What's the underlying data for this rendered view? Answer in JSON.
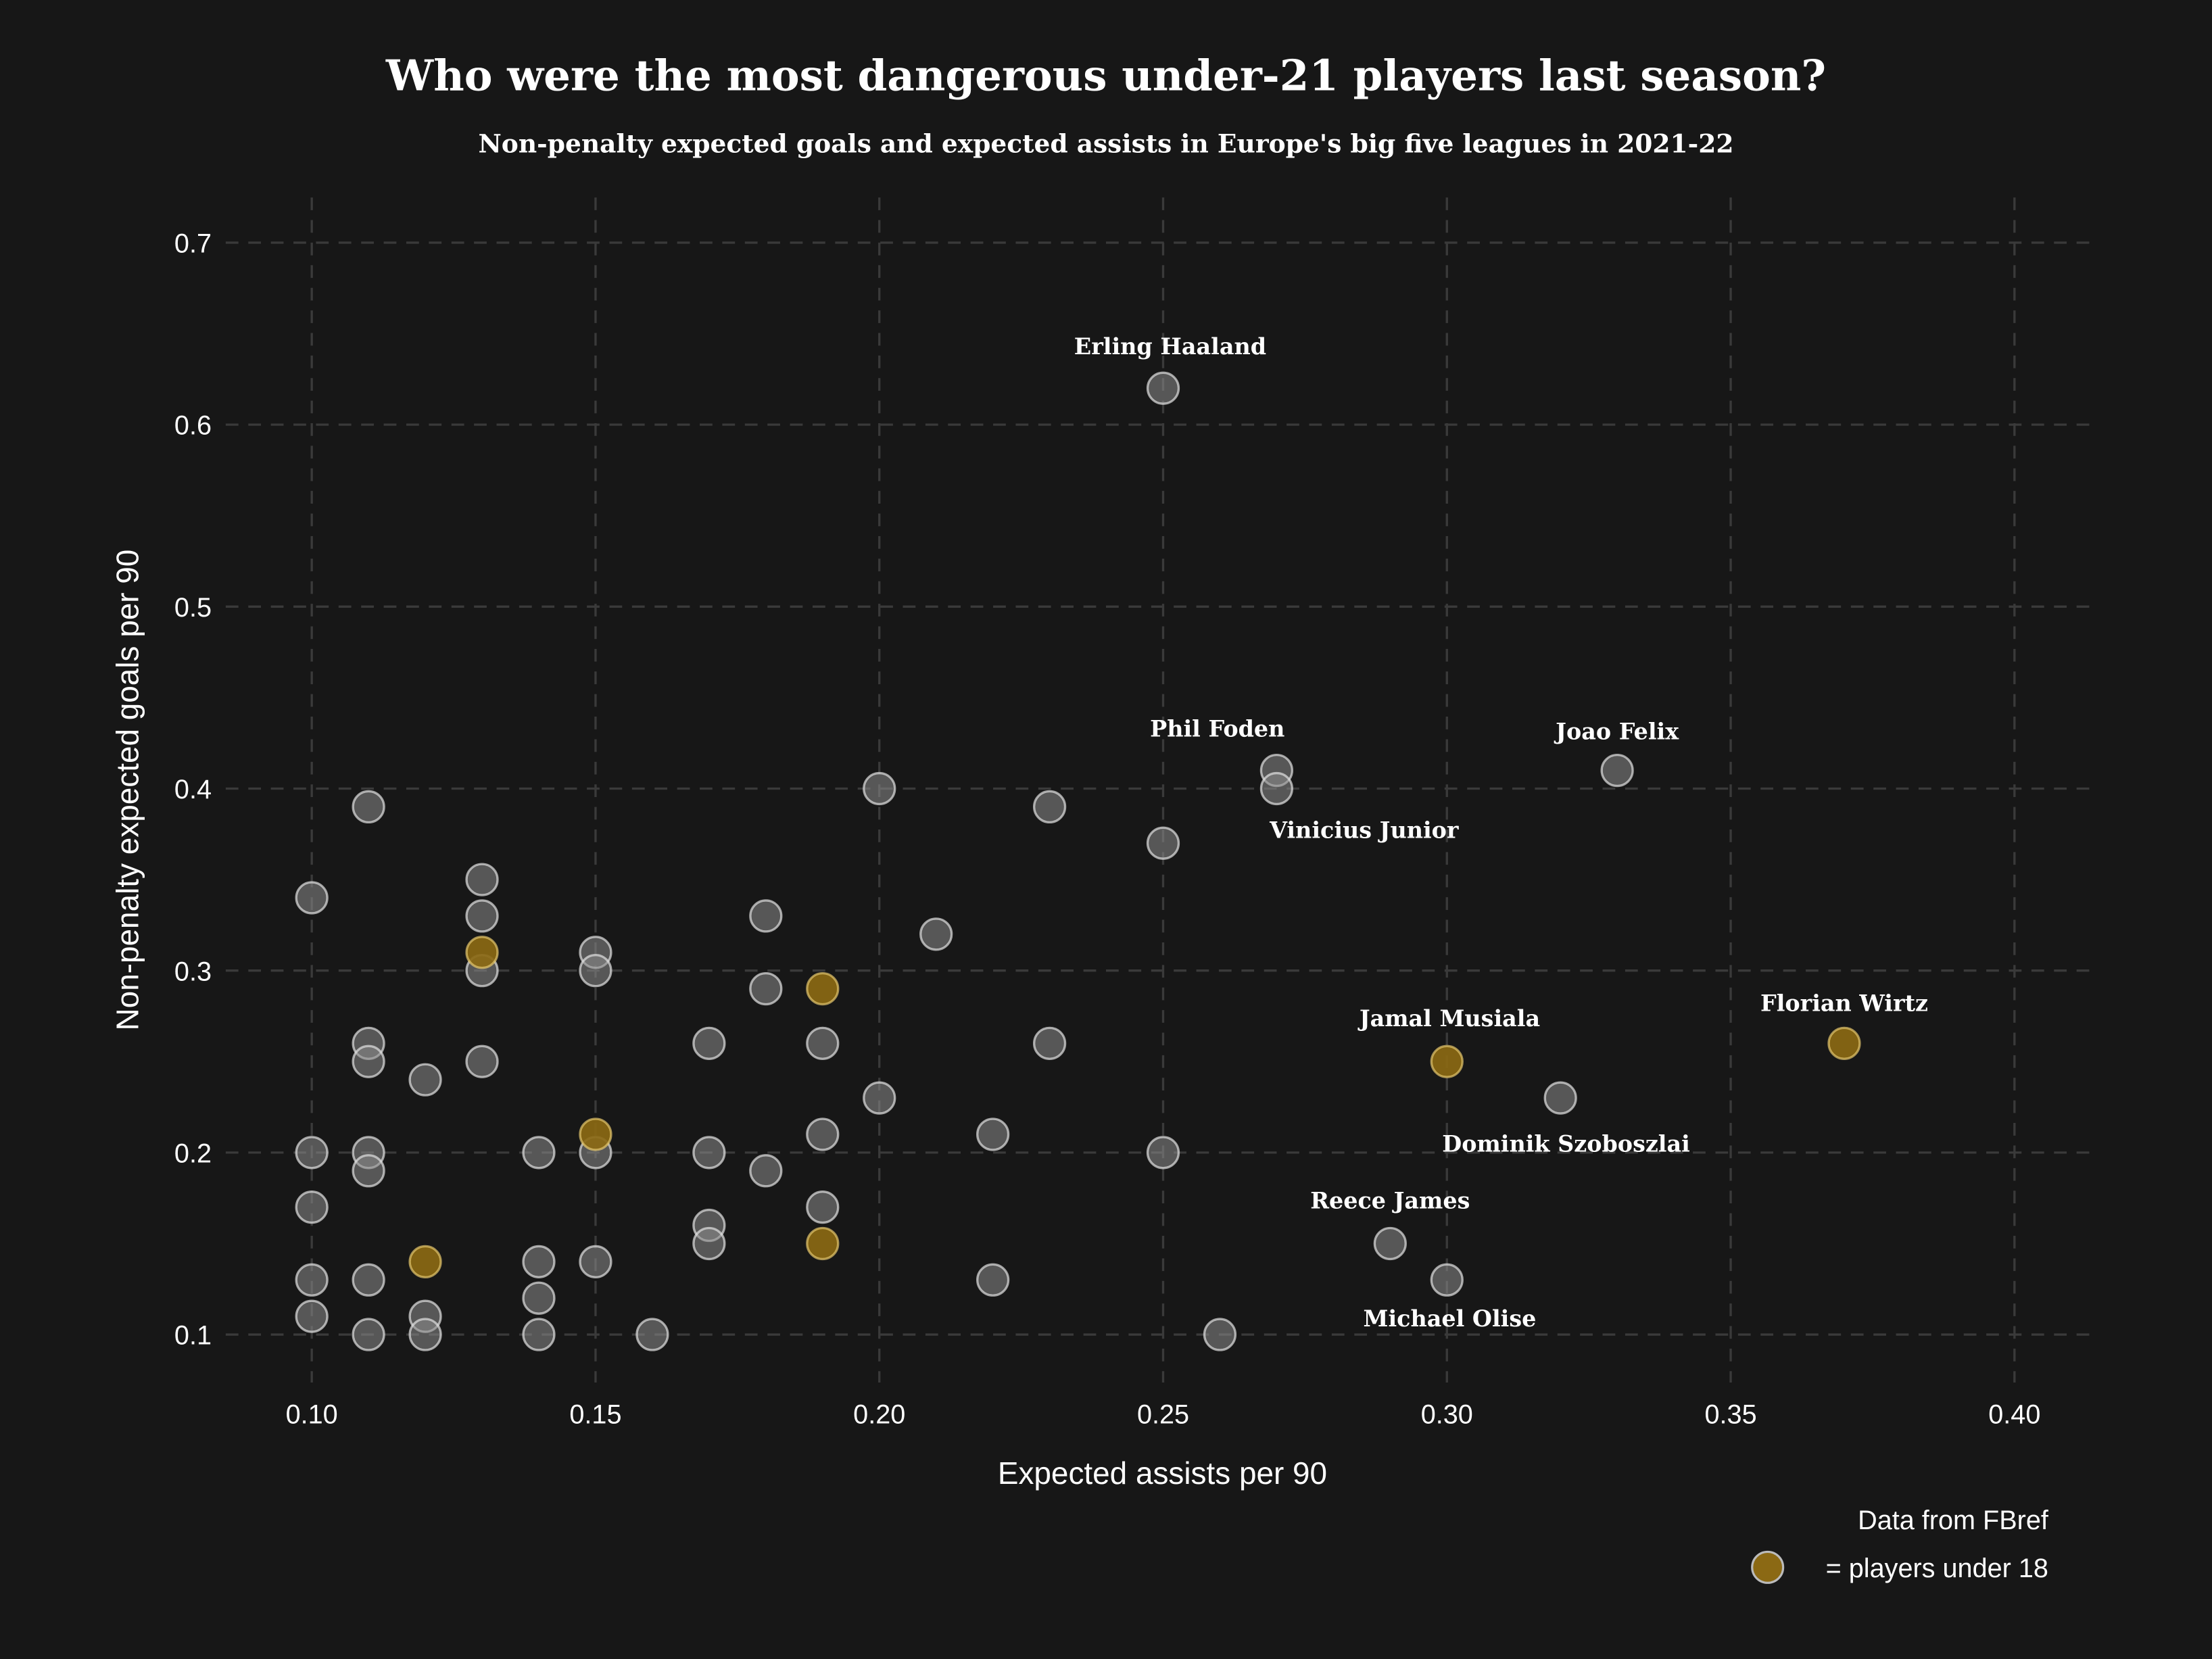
{
  "chart_data": {
    "type": "scatter",
    "title": "Who were the most dangerous under-21 players last season?",
    "subtitle": "Non-penalty expected goals and expected assists in Europe's big five leagues in 2021-22",
    "xlabel": "Expected assists per 90",
    "ylabel": "Non-penalty expected goals per 90",
    "xlim": [
      0.085,
      0.415
    ],
    "ylim": [
      0.075,
      0.72
    ],
    "xticks": [
      "0.10",
      "0.15",
      "0.20",
      "0.25",
      "0.30",
      "0.35",
      "0.40"
    ],
    "yticks": [
      "0.1",
      "0.2",
      "0.3",
      "0.4",
      "0.5",
      "0.6",
      "0.7"
    ],
    "grid": true,
    "colors": {
      "background": "#171717",
      "other": "#5a5a5a",
      "under18": "#8b6914",
      "grid": "#3a3a3a"
    },
    "source": "Data from FBref",
    "legend": {
      "label": "= players under 18",
      "placement": "bottom-right"
    },
    "points": [
      {
        "x": 0.25,
        "y": 0.62,
        "under18": false,
        "label": "Erling Haaland"
      },
      {
        "x": 0.27,
        "y": 0.41,
        "under18": false,
        "label": "Phil Foden"
      },
      {
        "x": 0.27,
        "y": 0.4,
        "under18": false,
        "label": "Vinicius Junior"
      },
      {
        "x": 0.33,
        "y": 0.41,
        "under18": false,
        "label": "Joao Felix"
      },
      {
        "x": 0.32,
        "y": 0.23,
        "under18": false,
        "label": "Dominik Szoboszlai"
      },
      {
        "x": 0.29,
        "y": 0.15,
        "under18": false,
        "label": "Reece James"
      },
      {
        "x": 0.3,
        "y": 0.13,
        "under18": false,
        "label": "Michael Olise"
      },
      {
        "x": 0.3,
        "y": 0.25,
        "under18": true,
        "label": "Jamal Musiala"
      },
      {
        "x": 0.37,
        "y": 0.26,
        "under18": true,
        "label": "Florian Wirtz"
      },
      {
        "x": 0.25,
        "y": 0.37,
        "under18": false
      },
      {
        "x": 0.23,
        "y": 0.39,
        "under18": false
      },
      {
        "x": 0.2,
        "y": 0.4,
        "under18": false
      },
      {
        "x": 0.11,
        "y": 0.39,
        "under18": false
      },
      {
        "x": 0.1,
        "y": 0.34,
        "under18": false
      },
      {
        "x": 0.13,
        "y": 0.35,
        "under18": false
      },
      {
        "x": 0.13,
        "y": 0.33,
        "under18": false
      },
      {
        "x": 0.13,
        "y": 0.3,
        "under18": false
      },
      {
        "x": 0.18,
        "y": 0.33,
        "under18": false
      },
      {
        "x": 0.21,
        "y": 0.32,
        "under18": false
      },
      {
        "x": 0.15,
        "y": 0.31,
        "under18": false
      },
      {
        "x": 0.15,
        "y": 0.3,
        "under18": false
      },
      {
        "x": 0.18,
        "y": 0.29,
        "under18": false
      },
      {
        "x": 0.11,
        "y": 0.26,
        "under18": false
      },
      {
        "x": 0.11,
        "y": 0.25,
        "under18": false
      },
      {
        "x": 0.12,
        "y": 0.24,
        "under18": false
      },
      {
        "x": 0.13,
        "y": 0.25,
        "under18": false
      },
      {
        "x": 0.17,
        "y": 0.26,
        "under18": false
      },
      {
        "x": 0.19,
        "y": 0.26,
        "under18": false
      },
      {
        "x": 0.23,
        "y": 0.26,
        "under18": false
      },
      {
        "x": 0.2,
        "y": 0.23,
        "under18": false
      },
      {
        "x": 0.22,
        "y": 0.21,
        "under18": false
      },
      {
        "x": 0.19,
        "y": 0.21,
        "under18": false
      },
      {
        "x": 0.1,
        "y": 0.2,
        "under18": false
      },
      {
        "x": 0.11,
        "y": 0.2,
        "under18": false
      },
      {
        "x": 0.11,
        "y": 0.19,
        "under18": false
      },
      {
        "x": 0.14,
        "y": 0.2,
        "under18": false
      },
      {
        "x": 0.15,
        "y": 0.2,
        "under18": false
      },
      {
        "x": 0.17,
        "y": 0.2,
        "under18": false
      },
      {
        "x": 0.18,
        "y": 0.19,
        "under18": false
      },
      {
        "x": 0.25,
        "y": 0.2,
        "under18": false
      },
      {
        "x": 0.1,
        "y": 0.17,
        "under18": false
      },
      {
        "x": 0.19,
        "y": 0.17,
        "under18": false
      },
      {
        "x": 0.17,
        "y": 0.16,
        "under18": false
      },
      {
        "x": 0.17,
        "y": 0.15,
        "under18": false
      },
      {
        "x": 0.1,
        "y": 0.13,
        "under18": false
      },
      {
        "x": 0.11,
        "y": 0.13,
        "under18": false
      },
      {
        "x": 0.14,
        "y": 0.14,
        "under18": false
      },
      {
        "x": 0.15,
        "y": 0.14,
        "under18": false
      },
      {
        "x": 0.22,
        "y": 0.13,
        "under18": false
      },
      {
        "x": 0.14,
        "y": 0.12,
        "under18": false
      },
      {
        "x": 0.1,
        "y": 0.11,
        "under18": false
      },
      {
        "x": 0.12,
        "y": 0.11,
        "under18": false
      },
      {
        "x": 0.11,
        "y": 0.1,
        "under18": false
      },
      {
        "x": 0.12,
        "y": 0.1,
        "under18": false
      },
      {
        "x": 0.14,
        "y": 0.1,
        "under18": false
      },
      {
        "x": 0.16,
        "y": 0.1,
        "under18": false
      },
      {
        "x": 0.26,
        "y": 0.1,
        "under18": false
      },
      {
        "x": 0.13,
        "y": 0.31,
        "under18": true
      },
      {
        "x": 0.19,
        "y": 0.29,
        "under18": true
      },
      {
        "x": 0.15,
        "y": 0.21,
        "under18": true
      },
      {
        "x": 0.12,
        "y": 0.14,
        "under18": true
      },
      {
        "x": 0.19,
        "y": 0.15,
        "under18": true
      }
    ]
  }
}
